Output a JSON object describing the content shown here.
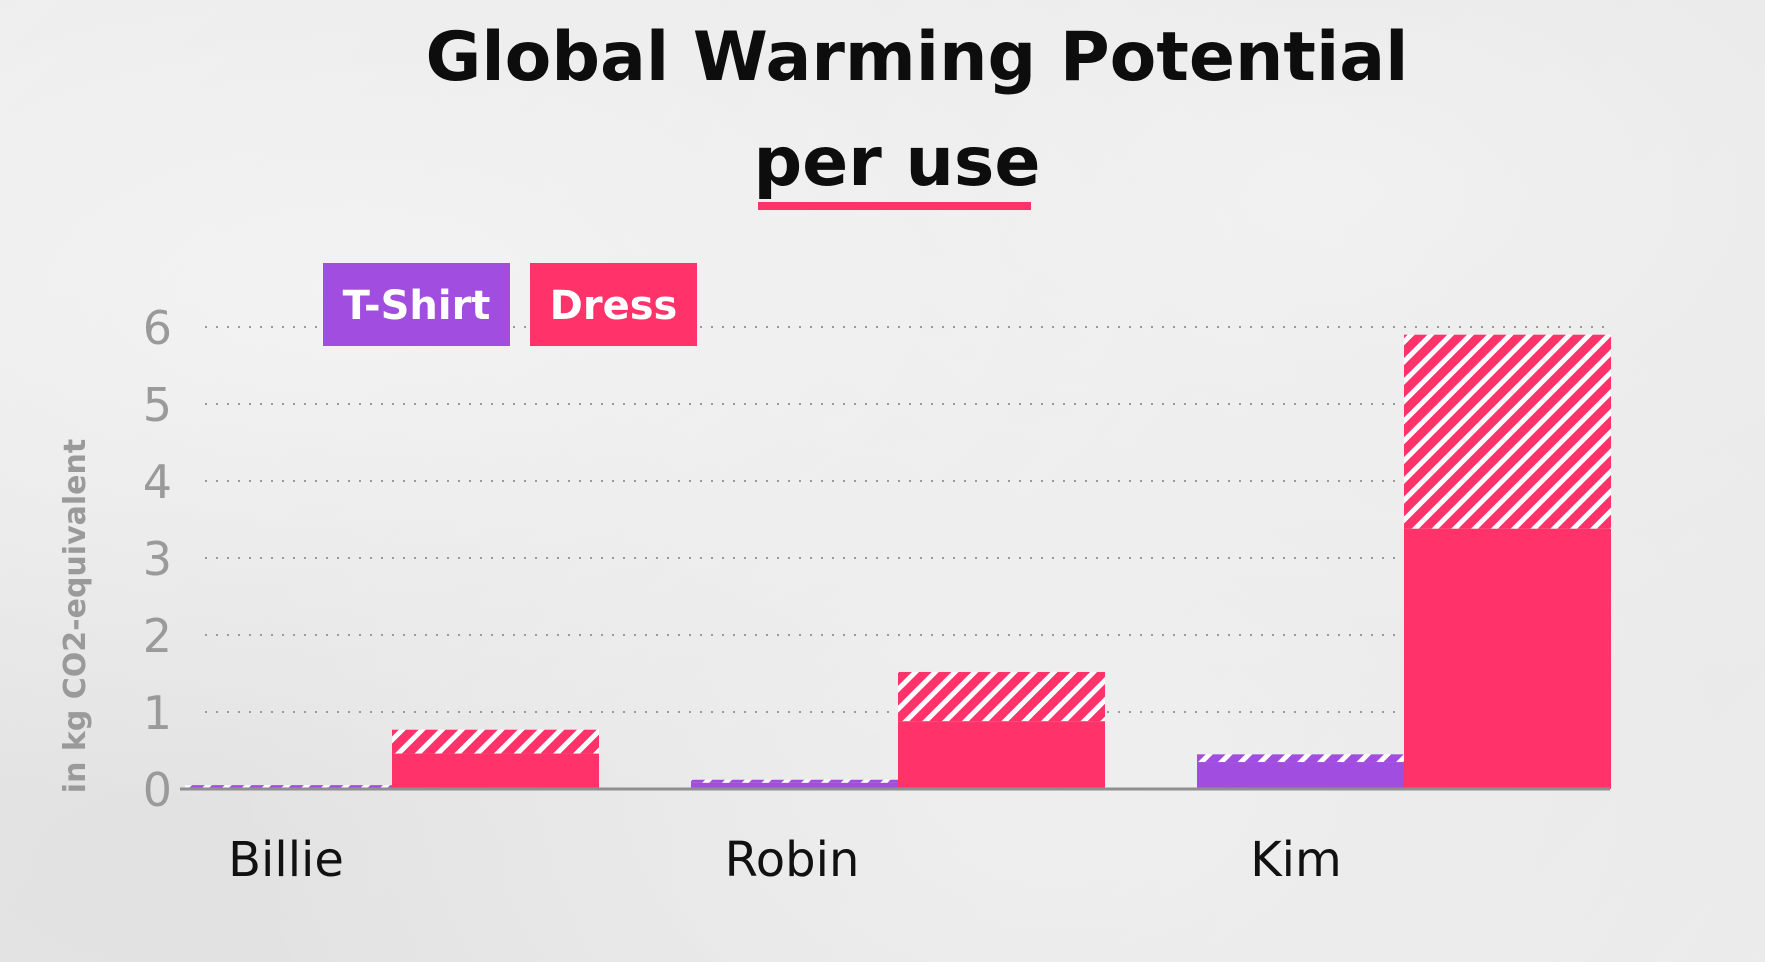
{
  "chart_data": {
    "type": "bar",
    "title": "Global Warming Potential",
    "subtitle": "per use",
    "ylabel": "in kg CO2-equivalent",
    "xlabel": "",
    "ylim": [
      0,
      6
    ],
    "yticks": [
      "0",
      "1",
      "2",
      "3",
      "4",
      "5",
      "6"
    ],
    "grid": true,
    "legend_position": "top-left",
    "categories": [
      "Billie",
      "Robin",
      "Kim"
    ],
    "series": [
      {
        "name": "T-Shirt",
        "color": "#a14ddf",
        "values": [
          0.05,
          0.12,
          0.45
        ],
        "solid": [
          0.02,
          0.08,
          0.35
        ]
      },
      {
        "name": "Dress",
        "color": "#ff336a",
        "values": [
          0.77,
          1.52,
          5.9
        ],
        "solid": [
          0.46,
          0.88,
          3.38
        ]
      }
    ]
  }
}
